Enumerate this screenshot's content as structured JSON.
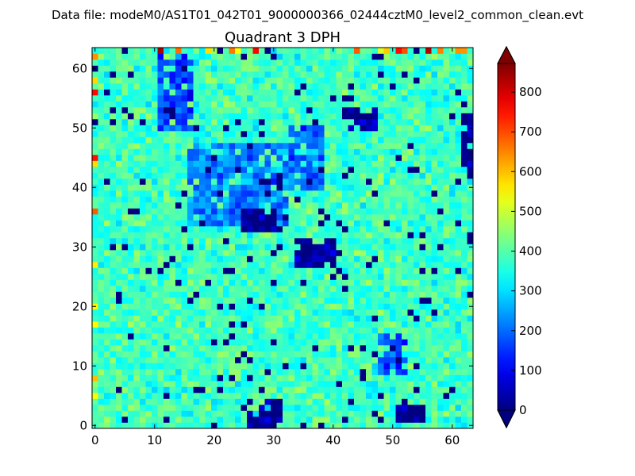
{
  "suptitle": "Data file: modeM0/AS1T01_042T01_9000000366_02444cztM0_level2_common_clean.evt",
  "chart_data": {
    "type": "heatmap",
    "title": "Quadrant 3 DPH",
    "xlabel": "",
    "ylabel": "",
    "grid_size": [
      64,
      64
    ],
    "xlim": [
      -0.5,
      63.5
    ],
    "ylim": [
      -0.5,
      63.5
    ],
    "xticks": [
      "0",
      "10",
      "20",
      "30",
      "40",
      "50",
      "60"
    ],
    "yticks": [
      "0",
      "10",
      "20",
      "30",
      "40",
      "50",
      "60"
    ],
    "colormap": "jet",
    "color_range": [
      0,
      872
    ],
    "colorbar_ticks": [
      "0",
      "100",
      "200",
      "300",
      "400",
      "500",
      "600",
      "700",
      "800"
    ],
    "colorbar_extend": "both",
    "typical_counts": 380,
    "noise_spread": 70,
    "dead_pixel_fraction": 0.04,
    "low_count_regions": [
      {
        "x": [
          16,
          32
        ],
        "y": [
          34,
          47
        ],
        "counts": 220
      },
      {
        "x": [
          11,
          16
        ],
        "y": [
          50,
          62
        ],
        "counts": 170
      },
      {
        "x": [
          33,
          38
        ],
        "y": [
          40,
          50
        ],
        "counts": 200
      },
      {
        "x": [
          48,
          52
        ],
        "y": [
          9,
          15
        ],
        "counts": 170
      },
      {
        "x": [
          34,
          40
        ],
        "y": [
          27,
          31
        ],
        "counts": 20
      },
      {
        "x": [
          25,
          30
        ],
        "y": [
          33,
          36
        ],
        "counts": 20
      },
      {
        "x": [
          42,
          47
        ],
        "y": [
          50,
          53
        ],
        "counts": 30
      },
      {
        "x": [
          26,
          31
        ],
        "y": [
          0,
          4
        ],
        "counts": 20
      },
      {
        "x": [
          51,
          55
        ],
        "y": [
          1,
          3
        ],
        "counts": 20
      },
      {
        "x": [
          62,
          63
        ],
        "y": [
          42,
          52
        ],
        "counts": 20
      }
    ]
  }
}
